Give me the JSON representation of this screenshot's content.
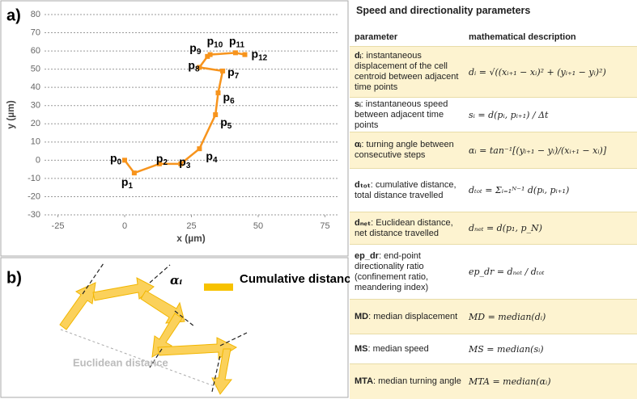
{
  "chart_data": {
    "type": "line",
    "panel_label": "a)",
    "xlabel": "x (µm)",
    "ylabel": "y (µm)",
    "point_prefix": "p",
    "point_names": [
      "0",
      "1",
      "2",
      "3",
      "4",
      "5",
      "6",
      "7",
      "8",
      "9",
      "10",
      "11",
      "12"
    ],
    "x": [
      0,
      3.6,
      13,
      21,
      28,
      34,
      35,
      36.7,
      28,
      31,
      32,
      41.5,
      45
    ],
    "values": [
      0,
      -7,
      -2,
      -2,
      6.3,
      25,
      37,
      49,
      51,
      57,
      58,
      59,
      58
    ],
    "color": "#f7941d",
    "xlim": [
      -30,
      80
    ],
    "xticks": [
      -25,
      0,
      25,
      50,
      75
    ],
    "ylim": [
      -30,
      80
    ],
    "yticks": [
      -30,
      -20,
      -10,
      0,
      10,
      20,
      30,
      40,
      50,
      60,
      70,
      80
    ],
    "grid": true
  },
  "diagram": {
    "panel_label": "b)",
    "angle": "αᵢ",
    "legend": "Cumulative distance",
    "euclidean": "Euclidean distance"
  },
  "table": {
    "title": "Speed and directionality parameters",
    "header": [
      "parameter",
      "mathematical description"
    ],
    "rows": [
      {
        "name": "dᵢ",
        "text": ": instantaneous displacement of the cell centroid between adjacent time points",
        "formula": "dᵢ = √((xᵢ₊₁ − xᵢ)² + (yᵢ₊₁ − yᵢ)²)"
      },
      {
        "name": "sᵢ",
        "text": ": instantaneous speed between adjacent time points",
        "formula": "sᵢ = d(pᵢ, pᵢ₊₁) / Δt"
      },
      {
        "name": "αᵢ",
        "text": ": turning angle between consecutive steps",
        "formula": "αᵢ = tan⁻¹[(yᵢ₊₁ − yᵢ)/(xᵢ₊₁ − xᵢ)]"
      },
      {
        "name": "dₜₒₜ",
        "text": ": cumulative distance, total distance travelled",
        "formula": "dₜₒₜ = Σᵢ₌₁ᴺ⁻¹ d(pᵢ, pᵢ₊₁)"
      },
      {
        "name": "dₙₑₜ",
        "text": ": Euclidean distance, net distance travelled",
        "formula": "dₙₑₜ = d(p₁, p_N)"
      },
      {
        "name": "ep_dr",
        "text": ": end-point directionality ratio (confinement ratio, meandering index)",
        "formula": "ep_dr = dₙₑₜ / dₜₒₜ"
      },
      {
        "name": "MD",
        "text": ": median displacement",
        "formula": "MD = median(dᵢ)"
      },
      {
        "name": "MS",
        "text": ": median speed",
        "formula": "MS = median(sᵢ)"
      },
      {
        "name": "MTA",
        "text": ": median turning angle",
        "formula": "MTA = median(αᵢ)"
      }
    ]
  }
}
